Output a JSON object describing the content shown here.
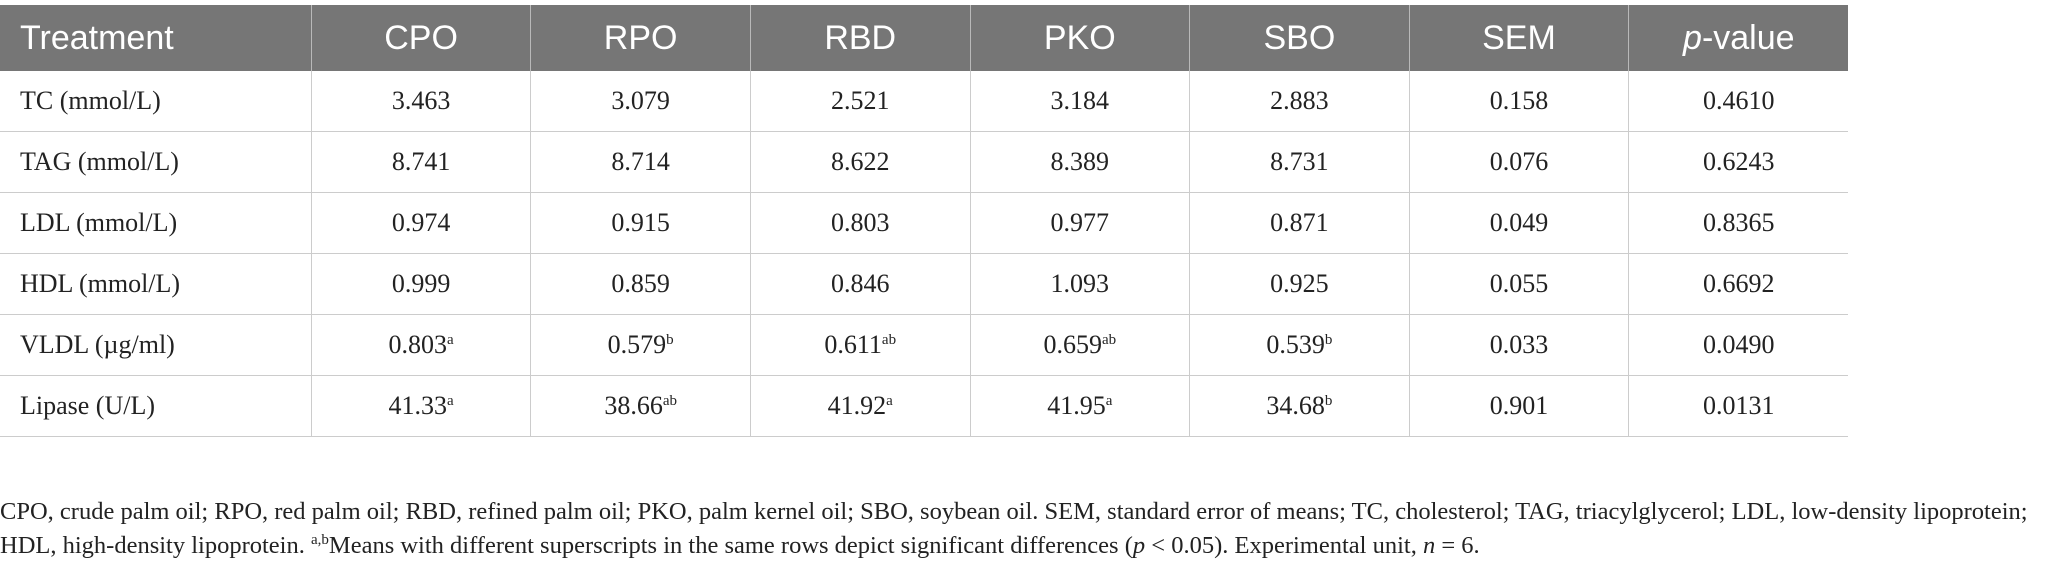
{
  "table": {
    "headers": {
      "treatment": "Treatment",
      "cpo": "CPO",
      "rpo": "RPO",
      "rbd": "RBD",
      "pko": "PKO",
      "sbo": "SBO",
      "sem": "SEM",
      "p_italic": "p",
      "p_rest": "-value"
    },
    "rows": [
      {
        "label": "TC (mmol/L)",
        "cpo": "3.463",
        "cpo_sup": "",
        "rpo": "3.079",
        "rpo_sup": "",
        "rbd": "2.521",
        "rbd_sup": "",
        "pko": "3.184",
        "pko_sup": "",
        "sbo": "2.883",
        "sbo_sup": "",
        "sem": "0.158",
        "p": "0.4610"
      },
      {
        "label": "TAG (mmol/L)",
        "cpo": "8.741",
        "cpo_sup": "",
        "rpo": "8.714",
        "rpo_sup": "",
        "rbd": "8.622",
        "rbd_sup": "",
        "pko": "8.389",
        "pko_sup": "",
        "sbo": "8.731",
        "sbo_sup": "",
        "sem": "0.076",
        "p": "0.6243"
      },
      {
        "label": "LDL (mmol/L)",
        "cpo": "0.974",
        "cpo_sup": "",
        "rpo": "0.915",
        "rpo_sup": "",
        "rbd": "0.803",
        "rbd_sup": "",
        "pko": "0.977",
        "pko_sup": "",
        "sbo": "0.871",
        "sbo_sup": "",
        "sem": "0.049",
        "p": "0.8365"
      },
      {
        "label": "HDL (mmol/L)",
        "cpo": "0.999",
        "cpo_sup": "",
        "rpo": "0.859",
        "rpo_sup": "",
        "rbd": "0.846",
        "rbd_sup": "",
        "pko": "1.093",
        "pko_sup": "",
        "sbo": "0.925",
        "sbo_sup": "",
        "sem": "0.055",
        "p": "0.6692"
      },
      {
        "label": "VLDL (µg/ml)",
        "cpo": "0.803",
        "cpo_sup": "a",
        "rpo": "0.579",
        "rpo_sup": "b",
        "rbd": "0.611",
        "rbd_sup": "ab",
        "pko": "0.659",
        "pko_sup": "ab",
        "sbo": "0.539",
        "sbo_sup": "b",
        "sem": "0.033",
        "p": "0.0490"
      },
      {
        "label": "Lipase (U/L)",
        "cpo": "41.33",
        "cpo_sup": "a",
        "rpo": "38.66",
        "rpo_sup": "ab",
        "rbd": "41.92",
        "rbd_sup": "a",
        "pko": "41.95",
        "pko_sup": "a",
        "sbo": "34.68",
        "sbo_sup": "b",
        "sem": "0.901",
        "p": "0.0131"
      }
    ]
  },
  "footnote": {
    "part1": "CPO, crude palm oil; RPO, red palm oil; RBD, refined palm oil; PKO, palm kernel oil; SBO, soybean oil. SEM, standard error of means; TC, cholesterol; TAG, triacylglycerol; LDL, low-density lipoprotein; HDL, high-density lipoprotein. ",
    "sup": "a,b",
    "part2": "Means with different superscripts in the same rows depict significant differences (",
    "p_italic": "p",
    "part3": " < 0.05). Experimental unit, ",
    "n_italic": "n",
    "part4": " = 6."
  }
}
